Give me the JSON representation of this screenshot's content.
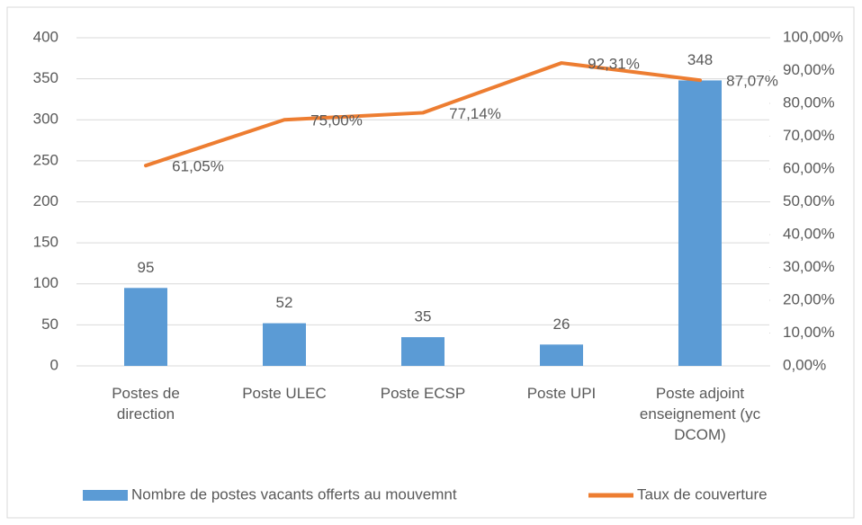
{
  "chart_data": {
    "type": "combo",
    "categories": [
      "Postes de direction",
      "Poste ULEC",
      "Poste ECSP",
      "Poste UPI",
      "Poste adjoint enseignement (yc DCOM)"
    ],
    "series": [
      {
        "name": "Nombre de  postes vacants offerts au mouvemnt",
        "type": "bar",
        "color": "#5b9bd5",
        "values": [
          95,
          52,
          35,
          26,
          348
        ]
      },
      {
        "name": "Taux de couverture",
        "type": "line",
        "axis": "y2",
        "color": "#ed7d31",
        "values": [
          61.05,
          75,
          77.14,
          92.31,
          87.07
        ],
        "value_labels": [
          "61,05%",
          "75,00%",
          "77,14%",
          "92,31%",
          "87,07%"
        ]
      }
    ],
    "ylim": [
      0,
      400
    ],
    "yticks": [
      0,
      50,
      100,
      150,
      200,
      250,
      300,
      350,
      400
    ],
    "y2lim": [
      0,
      100
    ],
    "y2ticks": [
      {
        "value": 0,
        "label": "0,00%"
      },
      {
        "value": 10,
        "label": "10,00%"
      },
      {
        "value": 20,
        "label": "20,00%"
      },
      {
        "value": 30,
        "label": "30,00%"
      },
      {
        "value": 40,
        "label": "40,00%"
      },
      {
        "value": 50,
        "label": "50,00%"
      },
      {
        "value": 60,
        "label": "60,00%"
      },
      {
        "value": 70,
        "label": "70,00%"
      },
      {
        "value": 80,
        "label": "80,00%"
      },
      {
        "value": 90,
        "label": "90,00%"
      },
      {
        "value": 100,
        "label": "100,00%"
      }
    ],
    "grid": true,
    "legend": "bottom"
  }
}
